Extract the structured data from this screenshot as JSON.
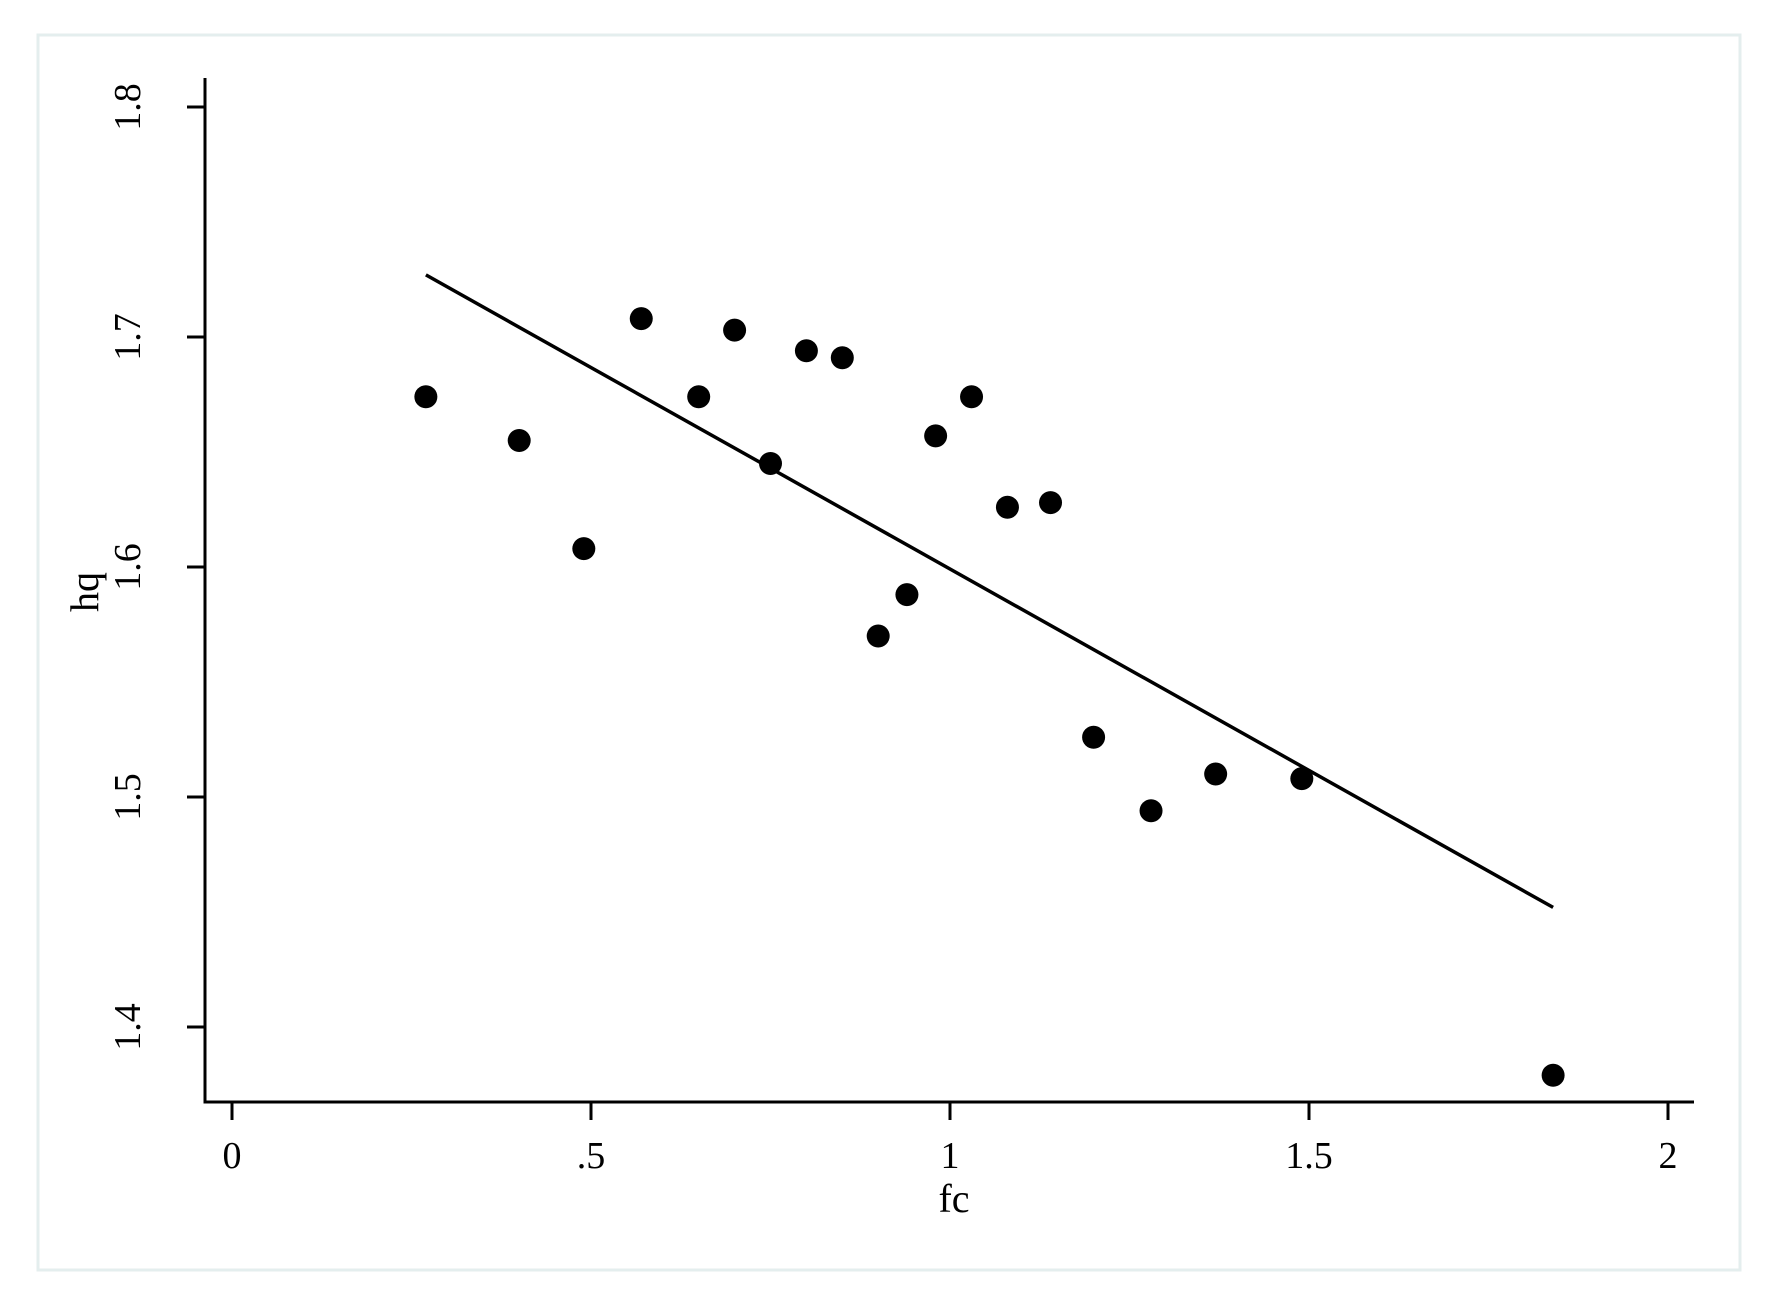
{
  "chart_data": {
    "type": "scatter",
    "title": "",
    "xlabel": "fc",
    "ylabel": "hq",
    "xlim": [
      -0.04,
      2.04
    ],
    "ylim": [
      1.367,
      1.81
    ],
    "x_ticks": [
      {
        "value": 0,
        "label": "0"
      },
      {
        "value": 0.5,
        "label": ".5"
      },
      {
        "value": 1,
        "label": "1"
      },
      {
        "value": 1.5,
        "label": "1.5"
      },
      {
        "value": 2,
        "label": "2"
      }
    ],
    "y_ticks": [
      {
        "value": 1.4,
        "label": "1.4"
      },
      {
        "value": 1.5,
        "label": "1.5"
      },
      {
        "value": 1.6,
        "label": "1.6"
      },
      {
        "value": 1.7,
        "label": "1.7"
      },
      {
        "value": 1.8,
        "label": "1.8"
      }
    ],
    "grid": false,
    "legend": "none",
    "series": [
      {
        "type": "scatter",
        "marker": "filled-circle",
        "color": "#000000",
        "points": [
          {
            "x": 0.27,
            "y": 1.674
          },
          {
            "x": 0.4,
            "y": 1.655
          },
          {
            "x": 0.49,
            "y": 1.608
          },
          {
            "x": 0.57,
            "y": 1.708
          },
          {
            "x": 0.65,
            "y": 1.674
          },
          {
            "x": 0.7,
            "y": 1.703
          },
          {
            "x": 0.75,
            "y": 1.645
          },
          {
            "x": 0.8,
            "y": 1.694
          },
          {
            "x": 0.85,
            "y": 1.691
          },
          {
            "x": 0.9,
            "y": 1.57
          },
          {
            "x": 0.94,
            "y": 1.588
          },
          {
            "x": 0.98,
            "y": 1.657
          },
          {
            "x": 1.03,
            "y": 1.674
          },
          {
            "x": 1.08,
            "y": 1.626
          },
          {
            "x": 1.14,
            "y": 1.628
          },
          {
            "x": 1.2,
            "y": 1.526
          },
          {
            "x": 1.28,
            "y": 1.494
          },
          {
            "x": 1.37,
            "y": 1.51
          },
          {
            "x": 1.49,
            "y": 1.508
          },
          {
            "x": 1.84,
            "y": 1.379
          }
        ]
      },
      {
        "type": "line",
        "color": "#000000",
        "points": [
          {
            "x": 0.27,
            "y": 1.727
          },
          {
            "x": 1.84,
            "y": 1.452
          }
        ]
      }
    ]
  }
}
